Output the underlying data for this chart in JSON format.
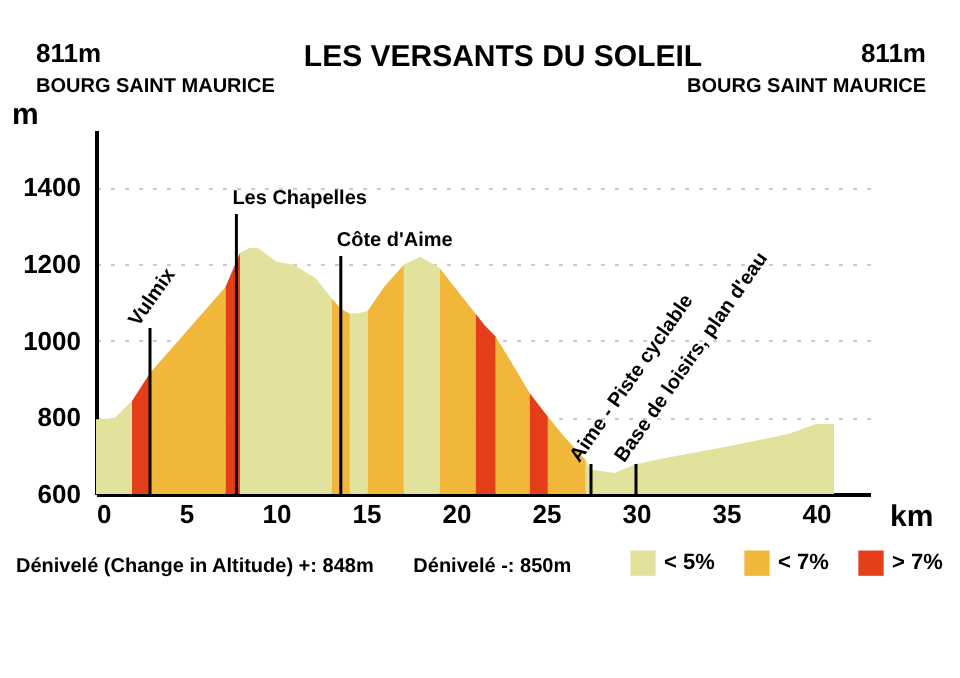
{
  "chart_data": {
    "type": "area",
    "title": "LES VERSANTS DU SOLEIL",
    "xlabel": "km",
    "ylabel": "m",
    "x": [
      0,
      1,
      2,
      3,
      5,
      7.2,
      8,
      8.5,
      9,
      10,
      11,
      12.2,
      13.1,
      13.6,
      14.1,
      14.6,
      15.1,
      16,
      17.1,
      18,
      19.1,
      20,
      21.1,
      21.6,
      22.2,
      23,
      24.1,
      24.6,
      25.1,
      26,
      27.2,
      27.5,
      28.8,
      30,
      32,
      35,
      38.5,
      40,
      41
    ],
    "series": [
      {
        "name": "< 5%",
        "color": "#e2e29c",
        "values": [
          795,
          797,
          843,
          null,
          null,
          null,
          1229,
          1242,
          1242,
          1207,
          1198,
          1163,
          1110,
          null,
          1071,
          1072,
          1078,
          null,
          1198,
          1219,
          1189,
          null,
          null,
          null,
          null,
          null,
          null,
          null,
          null,
          null,
          689,
          664,
          655,
          678,
          697,
          723,
          757,
          783,
          783
        ]
      },
      {
        "name": "< 7%",
        "color": "#f0b73a",
        "values": [
          null,
          null,
          null,
          916,
          1023,
          1141,
          null,
          null,
          null,
          null,
          null,
          null,
          1110,
          1083,
          1071,
          null,
          1078,
          1140,
          1198,
          null,
          1189,
          1135,
          1070,
          null,
          1011,
          950,
          863,
          null,
          802,
          750,
          689,
          null,
          null,
          null,
          null,
          null,
          null,
          null,
          null
        ]
      },
      {
        "name": "> 7%",
        "color": "#e53e1a",
        "values": [
          null,
          null,
          843,
          916,
          null,
          1141,
          1229,
          null,
          null,
          null,
          null,
          null,
          null,
          null,
          null,
          null,
          null,
          null,
          null,
          null,
          null,
          null,
          1070,
          1040,
          1011,
          null,
          863,
          832,
          802,
          null,
          null,
          null,
          null,
          null,
          null,
          null,
          null,
          null,
          null
        ]
      }
    ],
    "xlim": [
      0,
      43
    ],
    "xticks": [
      0,
      5,
      10,
      15,
      20,
      25,
      30,
      35,
      40
    ],
    "ylim": [
      600,
      1550
    ],
    "yticks": [
      600,
      800,
      1000,
      1200,
      1400
    ],
    "grid": "y",
    "legend": "bottom right",
    "annotations": [
      "811m",
      "BOURG SAINT MAURICE",
      "811m",
      "BOURG SAINT MAURICE",
      "Dénivelé (Change in Altitude) +: 848m",
      "Dénivelé -: 850m"
    ],
    "ref_lines": [
      {
        "axis": "x",
        "value": 3,
        "label": "Vulmix"
      },
      {
        "axis": "x",
        "value": 7.8,
        "label": "Les Chapelles"
      },
      {
        "axis": "x",
        "value": 13.6,
        "label": "Côte d'Aime"
      },
      {
        "axis": "x",
        "value": 27.5,
        "label": "Aime - Piste cyclable"
      },
      {
        "axis": "x",
        "value": 30,
        "label": "Base de loisirs, plan d'eau"
      }
    ]
  }
}
